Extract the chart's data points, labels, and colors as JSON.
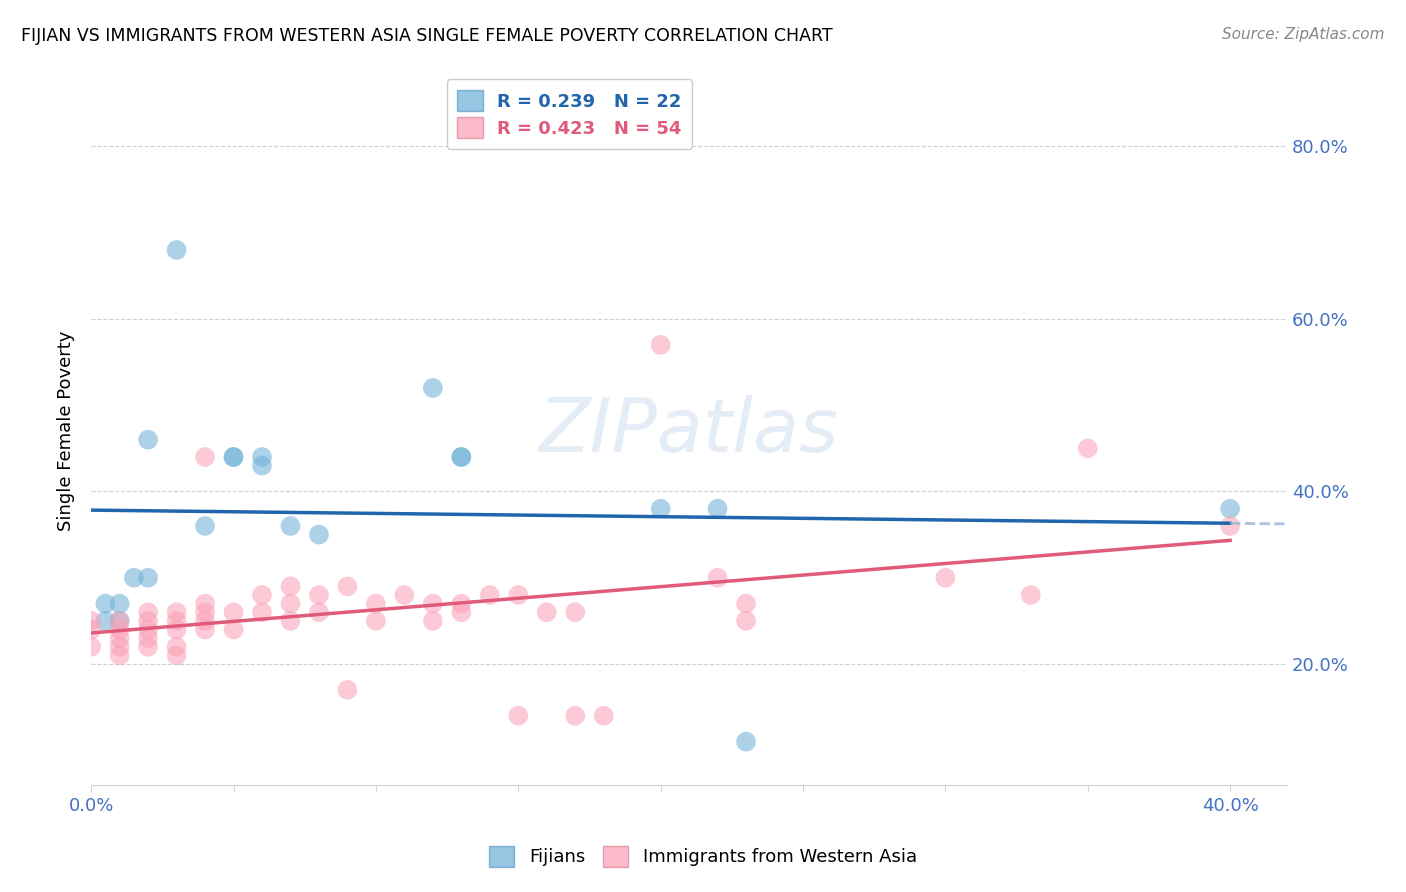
{
  "title": "FIJIAN VS IMMIGRANTS FROM WESTERN ASIA SINGLE FEMALE POVERTY CORRELATION CHART",
  "source": "Source: ZipAtlas.com",
  "ylabel": "Single Female Poverty",
  "xlim": [
    0.0,
    0.42
  ],
  "ylim": [
    0.06,
    0.88
  ],
  "fijian_color": "#6baed6",
  "western_asia_color": "#fa9fb5",
  "fijian_line_color": "#2166ac",
  "western_asia_line_color": "#e05a7a",
  "fijian_scatter": [
    [
      0.005,
      0.27
    ],
    [
      0.005,
      0.25
    ],
    [
      0.01,
      0.27
    ],
    [
      0.01,
      0.25
    ],
    [
      0.015,
      0.3
    ],
    [
      0.02,
      0.3
    ],
    [
      0.02,
      0.46
    ],
    [
      0.03,
      0.68
    ],
    [
      0.04,
      0.36
    ],
    [
      0.05,
      0.44
    ],
    [
      0.05,
      0.44
    ],
    [
      0.06,
      0.43
    ],
    [
      0.06,
      0.44
    ],
    [
      0.07,
      0.36
    ],
    [
      0.08,
      0.35
    ],
    [
      0.12,
      0.52
    ],
    [
      0.13,
      0.44
    ],
    [
      0.13,
      0.44
    ],
    [
      0.2,
      0.38
    ],
    [
      0.22,
      0.38
    ],
    [
      0.23,
      0.11
    ],
    [
      0.4,
      0.38
    ]
  ],
  "western_asia_scatter": [
    [
      0.0,
      0.25
    ],
    [
      0.0,
      0.24
    ],
    [
      0.0,
      0.22
    ],
    [
      0.01,
      0.25
    ],
    [
      0.01,
      0.24
    ],
    [
      0.01,
      0.23
    ],
    [
      0.01,
      0.22
    ],
    [
      0.01,
      0.21
    ],
    [
      0.02,
      0.26
    ],
    [
      0.02,
      0.25
    ],
    [
      0.02,
      0.24
    ],
    [
      0.02,
      0.23
    ],
    [
      0.02,
      0.22
    ],
    [
      0.03,
      0.26
    ],
    [
      0.03,
      0.25
    ],
    [
      0.03,
      0.24
    ],
    [
      0.03,
      0.22
    ],
    [
      0.03,
      0.21
    ],
    [
      0.04,
      0.44
    ],
    [
      0.04,
      0.27
    ],
    [
      0.04,
      0.26
    ],
    [
      0.04,
      0.25
    ],
    [
      0.04,
      0.24
    ],
    [
      0.05,
      0.26
    ],
    [
      0.05,
      0.24
    ],
    [
      0.06,
      0.28
    ],
    [
      0.06,
      0.26
    ],
    [
      0.07,
      0.29
    ],
    [
      0.07,
      0.27
    ],
    [
      0.07,
      0.25
    ],
    [
      0.08,
      0.28
    ],
    [
      0.08,
      0.26
    ],
    [
      0.09,
      0.29
    ],
    [
      0.09,
      0.17
    ],
    [
      0.1,
      0.27
    ],
    [
      0.1,
      0.25
    ],
    [
      0.11,
      0.28
    ],
    [
      0.12,
      0.27
    ],
    [
      0.12,
      0.25
    ],
    [
      0.13,
      0.27
    ],
    [
      0.13,
      0.26
    ],
    [
      0.14,
      0.28
    ],
    [
      0.15,
      0.28
    ],
    [
      0.15,
      0.14
    ],
    [
      0.16,
      0.26
    ],
    [
      0.17,
      0.26
    ],
    [
      0.17,
      0.14
    ],
    [
      0.18,
      0.14
    ],
    [
      0.2,
      0.57
    ],
    [
      0.22,
      0.3
    ],
    [
      0.23,
      0.27
    ],
    [
      0.23,
      0.25
    ],
    [
      0.3,
      0.3
    ],
    [
      0.33,
      0.28
    ],
    [
      0.35,
      0.45
    ],
    [
      0.4,
      0.36
    ]
  ]
}
